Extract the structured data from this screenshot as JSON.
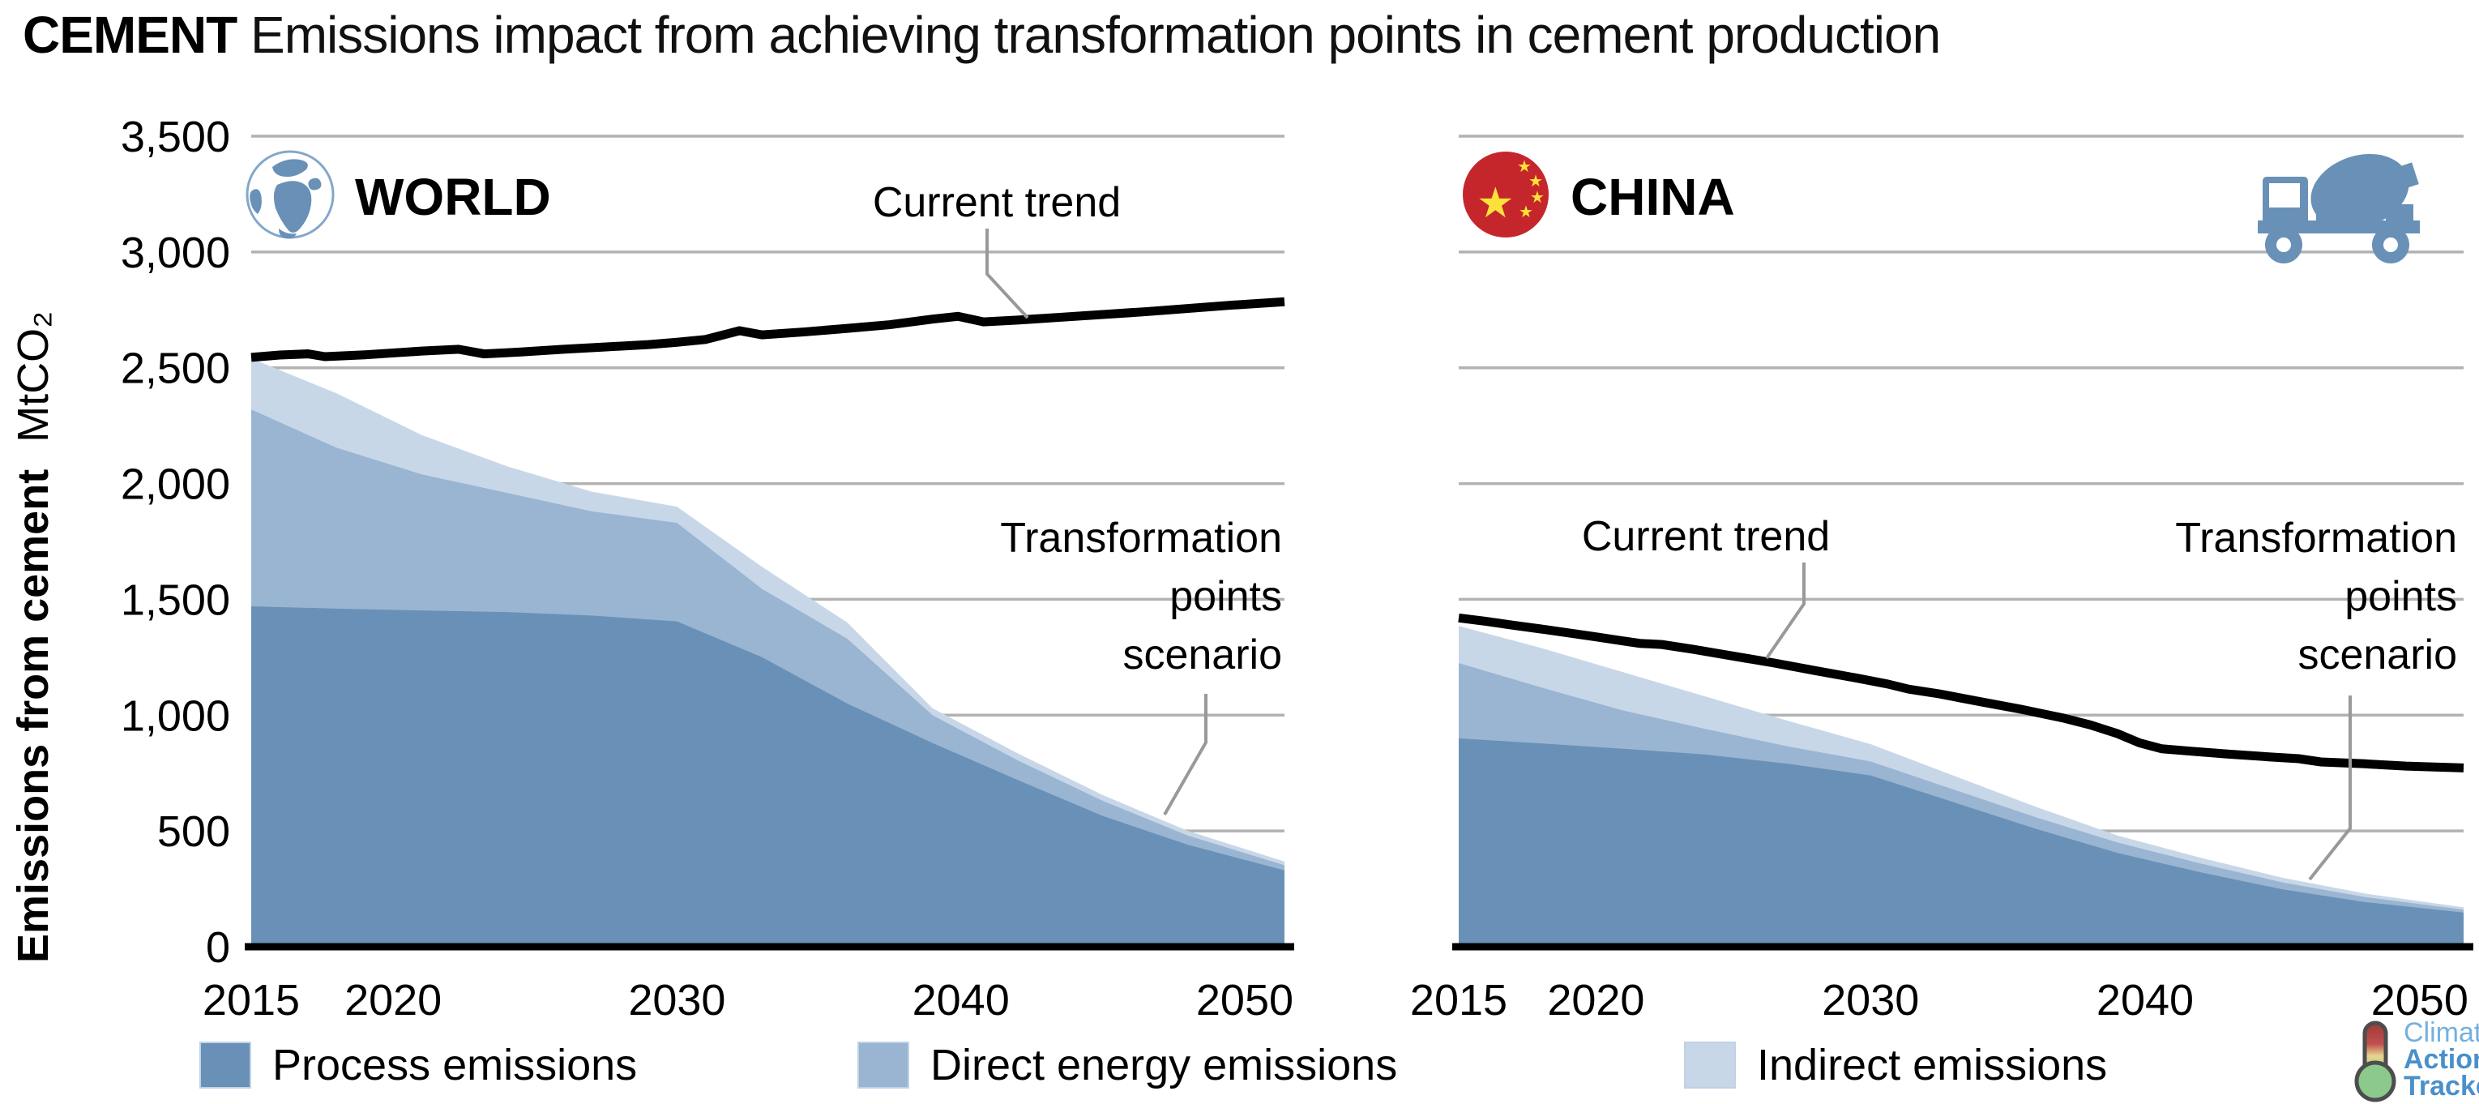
{
  "title": {
    "bold": "CEMENT",
    "rest": "Emissions impact from achieving transformation points in cement production"
  },
  "y_axis": {
    "label": "Emissions from cement",
    "unit": "MtCO₂"
  },
  "annotations": {
    "current_trend": "Current trend",
    "transformation_lines": [
      "Transformation",
      "points",
      "scenario"
    ]
  },
  "panels": [
    {
      "name": "WORLD",
      "icon": "globe-icon"
    },
    {
      "name": "CHINA",
      "icon": "china-flag-icon",
      "secondary_icon": "cement-mixer-truck-icon"
    }
  ],
  "legend": {
    "items": [
      {
        "label": "Process emissions",
        "color": "#6991b7"
      },
      {
        "label": "Direct energy emissions",
        "color": "#9ab5d2"
      },
      {
        "label": "Indirect emissions",
        "color": "#c8d7e8"
      }
    ]
  },
  "logo": {
    "line1": "Climate",
    "line2": "Action",
    "line3": "Tracker"
  },
  "colors": {
    "process": "#6991b7",
    "direct": "#9ab5d2",
    "indirect": "#c8d7e8",
    "trend": "#000000",
    "grid": "#b2b2b2",
    "leader": "#999999",
    "icon_blue": "#6991b7"
  },
  "chart_data": [
    {
      "type": "area",
      "title": "WORLD",
      "ylabel": "Emissions from cement",
      "unit": "MtCO₂",
      "ylim": [
        0,
        3500
      ],
      "yticks": [
        0,
        500,
        1000,
        1500,
        2000,
        2500,
        3000,
        3500
      ],
      "ytick_labels": [
        "0",
        "500",
        "1,000",
        "1,500",
        "2,000",
        "2,500",
        "3,000",
        "3,500"
      ],
      "show_ytick_labels": true,
      "xticks": [
        2015,
        2020,
        2030,
        2040,
        2050
      ],
      "x_start": 2015,
      "x_end": 2051.4,
      "grid": true,
      "stack_years": [
        2015,
        2018,
        2021,
        2024,
        2027,
        2030,
        2033,
        2036,
        2039,
        2042,
        2045,
        2048,
        2051.4
      ],
      "series": [
        {
          "name": "Process emissions",
          "color": "#6991b7",
          "values": [
            1470,
            1460,
            1452,
            1445,
            1430,
            1405,
            1250,
            1050,
            880,
            720,
            565,
            440,
            330
          ]
        },
        {
          "name": "Direct energy emissions",
          "color": "#9ab5d2",
          "values": [
            850,
            695,
            588,
            515,
            450,
            425,
            295,
            280,
            120,
            85,
            65,
            40,
            22
          ]
        },
        {
          "name": "Indirect emissions",
          "color": "#c8d7e8",
          "values": [
            220,
            235,
            170,
            115,
            85,
            70,
            95,
            70,
            30,
            30,
            25,
            20,
            16
          ]
        }
      ],
      "trend": {
        "name": "Current trend",
        "x": [
          2015,
          2016,
          2017,
          2017.6,
          2019,
          2020,
          2021,
          2022.3,
          2023.2,
          2024.5,
          2026,
          2027.5,
          2029,
          2030,
          2031,
          2032.2,
          2033,
          2034.5,
          2036,
          2037.5,
          2039,
          2039.9,
          2040.8,
          2042,
          2043.5,
          2045,
          2046.5,
          2048,
          2049.5,
          2051.4
        ],
        "values": [
          2545,
          2555,
          2560,
          2548,
          2556,
          2564,
          2572,
          2580,
          2560,
          2568,
          2580,
          2590,
          2600,
          2610,
          2622,
          2660,
          2642,
          2655,
          2670,
          2686,
          2710,
          2722,
          2698,
          2706,
          2718,
          2730,
          2742,
          2756,
          2770,
          2785
        ]
      }
    },
    {
      "type": "area",
      "title": "CHINA",
      "ylabel": "Emissions from cement",
      "unit": "MtCO₂",
      "ylim": [
        0,
        3500
      ],
      "yticks": [
        0,
        500,
        1000,
        1500,
        2000,
        2500,
        3000,
        3500
      ],
      "ytick_labels": [
        "0",
        "500",
        "1,000",
        "1,500",
        "2,000",
        "2,500",
        "3,000",
        "3,500"
      ],
      "show_ytick_labels": false,
      "xticks": [
        2015,
        2020,
        2030,
        2040,
        2050
      ],
      "x_start": 2015,
      "x_end": 2051.6,
      "grid": true,
      "stack_years": [
        2015,
        2018,
        2021,
        2024,
        2027,
        2030,
        2033,
        2036,
        2039,
        2042,
        2045,
        2048,
        2051.6
      ],
      "series": [
        {
          "name": "Process emissions",
          "color": "#6991b7",
          "values": [
            900,
            878,
            855,
            830,
            790,
            740,
            625,
            510,
            405,
            322,
            248,
            193,
            148
          ]
        },
        {
          "name": "Direct energy emissions",
          "color": "#9ab5d2",
          "values": [
            325,
            242,
            165,
            110,
            75,
            60,
            55,
            50,
            45,
            38,
            30,
            22,
            12
          ]
        },
        {
          "name": "Indirect emissions",
          "color": "#c8d7e8",
          "values": [
            160,
            170,
            165,
            140,
            110,
            75,
            60,
            45,
            30,
            25,
            20,
            15,
            10
          ]
        }
      ],
      "trend": {
        "name": "Current trend",
        "x": [
          2015,
          2016,
          2017,
          2018,
          2019,
          2020,
          2021,
          2021.6,
          2022.4,
          2023.5,
          2025,
          2026.5,
          2028,
          2029.5,
          2030.6,
          2031.4,
          2032.5,
          2034,
          2035.5,
          2037,
          2038,
          2039,
          2039.8,
          2040.6,
          2041.6,
          2043,
          2044.5,
          2045.6,
          2046.4,
          2048,
          2049.5,
          2051.6
        ],
        "values": [
          1420,
          1405,
          1388,
          1372,
          1355,
          1338,
          1320,
          1310,
          1305,
          1285,
          1255,
          1225,
          1192,
          1160,
          1135,
          1112,
          1092,
          1058,
          1025,
          988,
          958,
          920,
          880,
          855,
          845,
          832,
          820,
          812,
          798,
          790,
          780,
          772
        ]
      }
    }
  ]
}
